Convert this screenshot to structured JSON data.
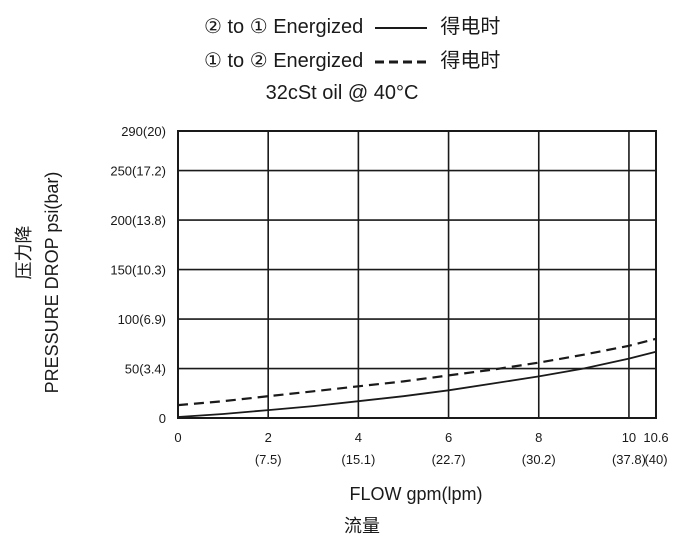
{
  "legend": {
    "line1": {
      "label": "② to ① Energized",
      "cn": "得电时",
      "style": "solid"
    },
    "line2": {
      "label": "① to ② Energized",
      "cn": "得电时",
      "style": "dashed"
    }
  },
  "subtitle": "32cSt oil @ 40°C",
  "chart_data": {
    "type": "line",
    "title": "",
    "subtitle": "32cSt oil @ 40°C",
    "xlabel": "FLOW   gpm(lpm)",
    "xlabel_cn": "流量",
    "ylabel": "PRESSURE DROP  psi(bar)",
    "ylabel_cn": "压力降",
    "xlim": [
      0,
      10.6
    ],
    "ylim": [
      0,
      290
    ],
    "grid": true,
    "x_ticks": [
      {
        "value": 0,
        "label": "0",
        "sub": ""
      },
      {
        "value": 2,
        "label": "2",
        "sub": "(7.5)"
      },
      {
        "value": 4,
        "label": "4",
        "sub": "(15.1)"
      },
      {
        "value": 6,
        "label": "6",
        "sub": "(22.7)"
      },
      {
        "value": 8,
        "label": "8",
        "sub": "(30.2)"
      },
      {
        "value": 10,
        "label": "10",
        "sub": "(37.8)"
      },
      {
        "value": 10.6,
        "label": "10.6",
        "sub": "(40)"
      }
    ],
    "y_ticks": [
      {
        "value": 0,
        "label": "0"
      },
      {
        "value": 50,
        "label": "50(3.4)"
      },
      {
        "value": 100,
        "label": "100(6.9)"
      },
      {
        "value": 150,
        "label": "150(10.3)"
      },
      {
        "value": 200,
        "label": "200(13.8)"
      },
      {
        "value": 250,
        "label": "250(17.2)"
      },
      {
        "value": 290,
        "label": "290(20)"
      }
    ],
    "series": [
      {
        "name": "② to ① Energized",
        "style": "solid",
        "x": [
          0,
          1,
          2,
          3,
          4,
          5,
          6,
          7,
          8,
          9,
          10,
          10.6
        ],
        "y": [
          1,
          4,
          8,
          12,
          17,
          22,
          28,
          35,
          42,
          50,
          60,
          67
        ]
      },
      {
        "name": "① to ② Energized",
        "style": "dashed",
        "x": [
          0,
          1,
          2,
          3,
          4,
          5,
          6,
          7,
          8,
          9,
          10,
          10.6
        ],
        "y": [
          13,
          17,
          22,
          27,
          32,
          37,
          43,
          49,
          56,
          64,
          73,
          80
        ]
      }
    ]
  }
}
